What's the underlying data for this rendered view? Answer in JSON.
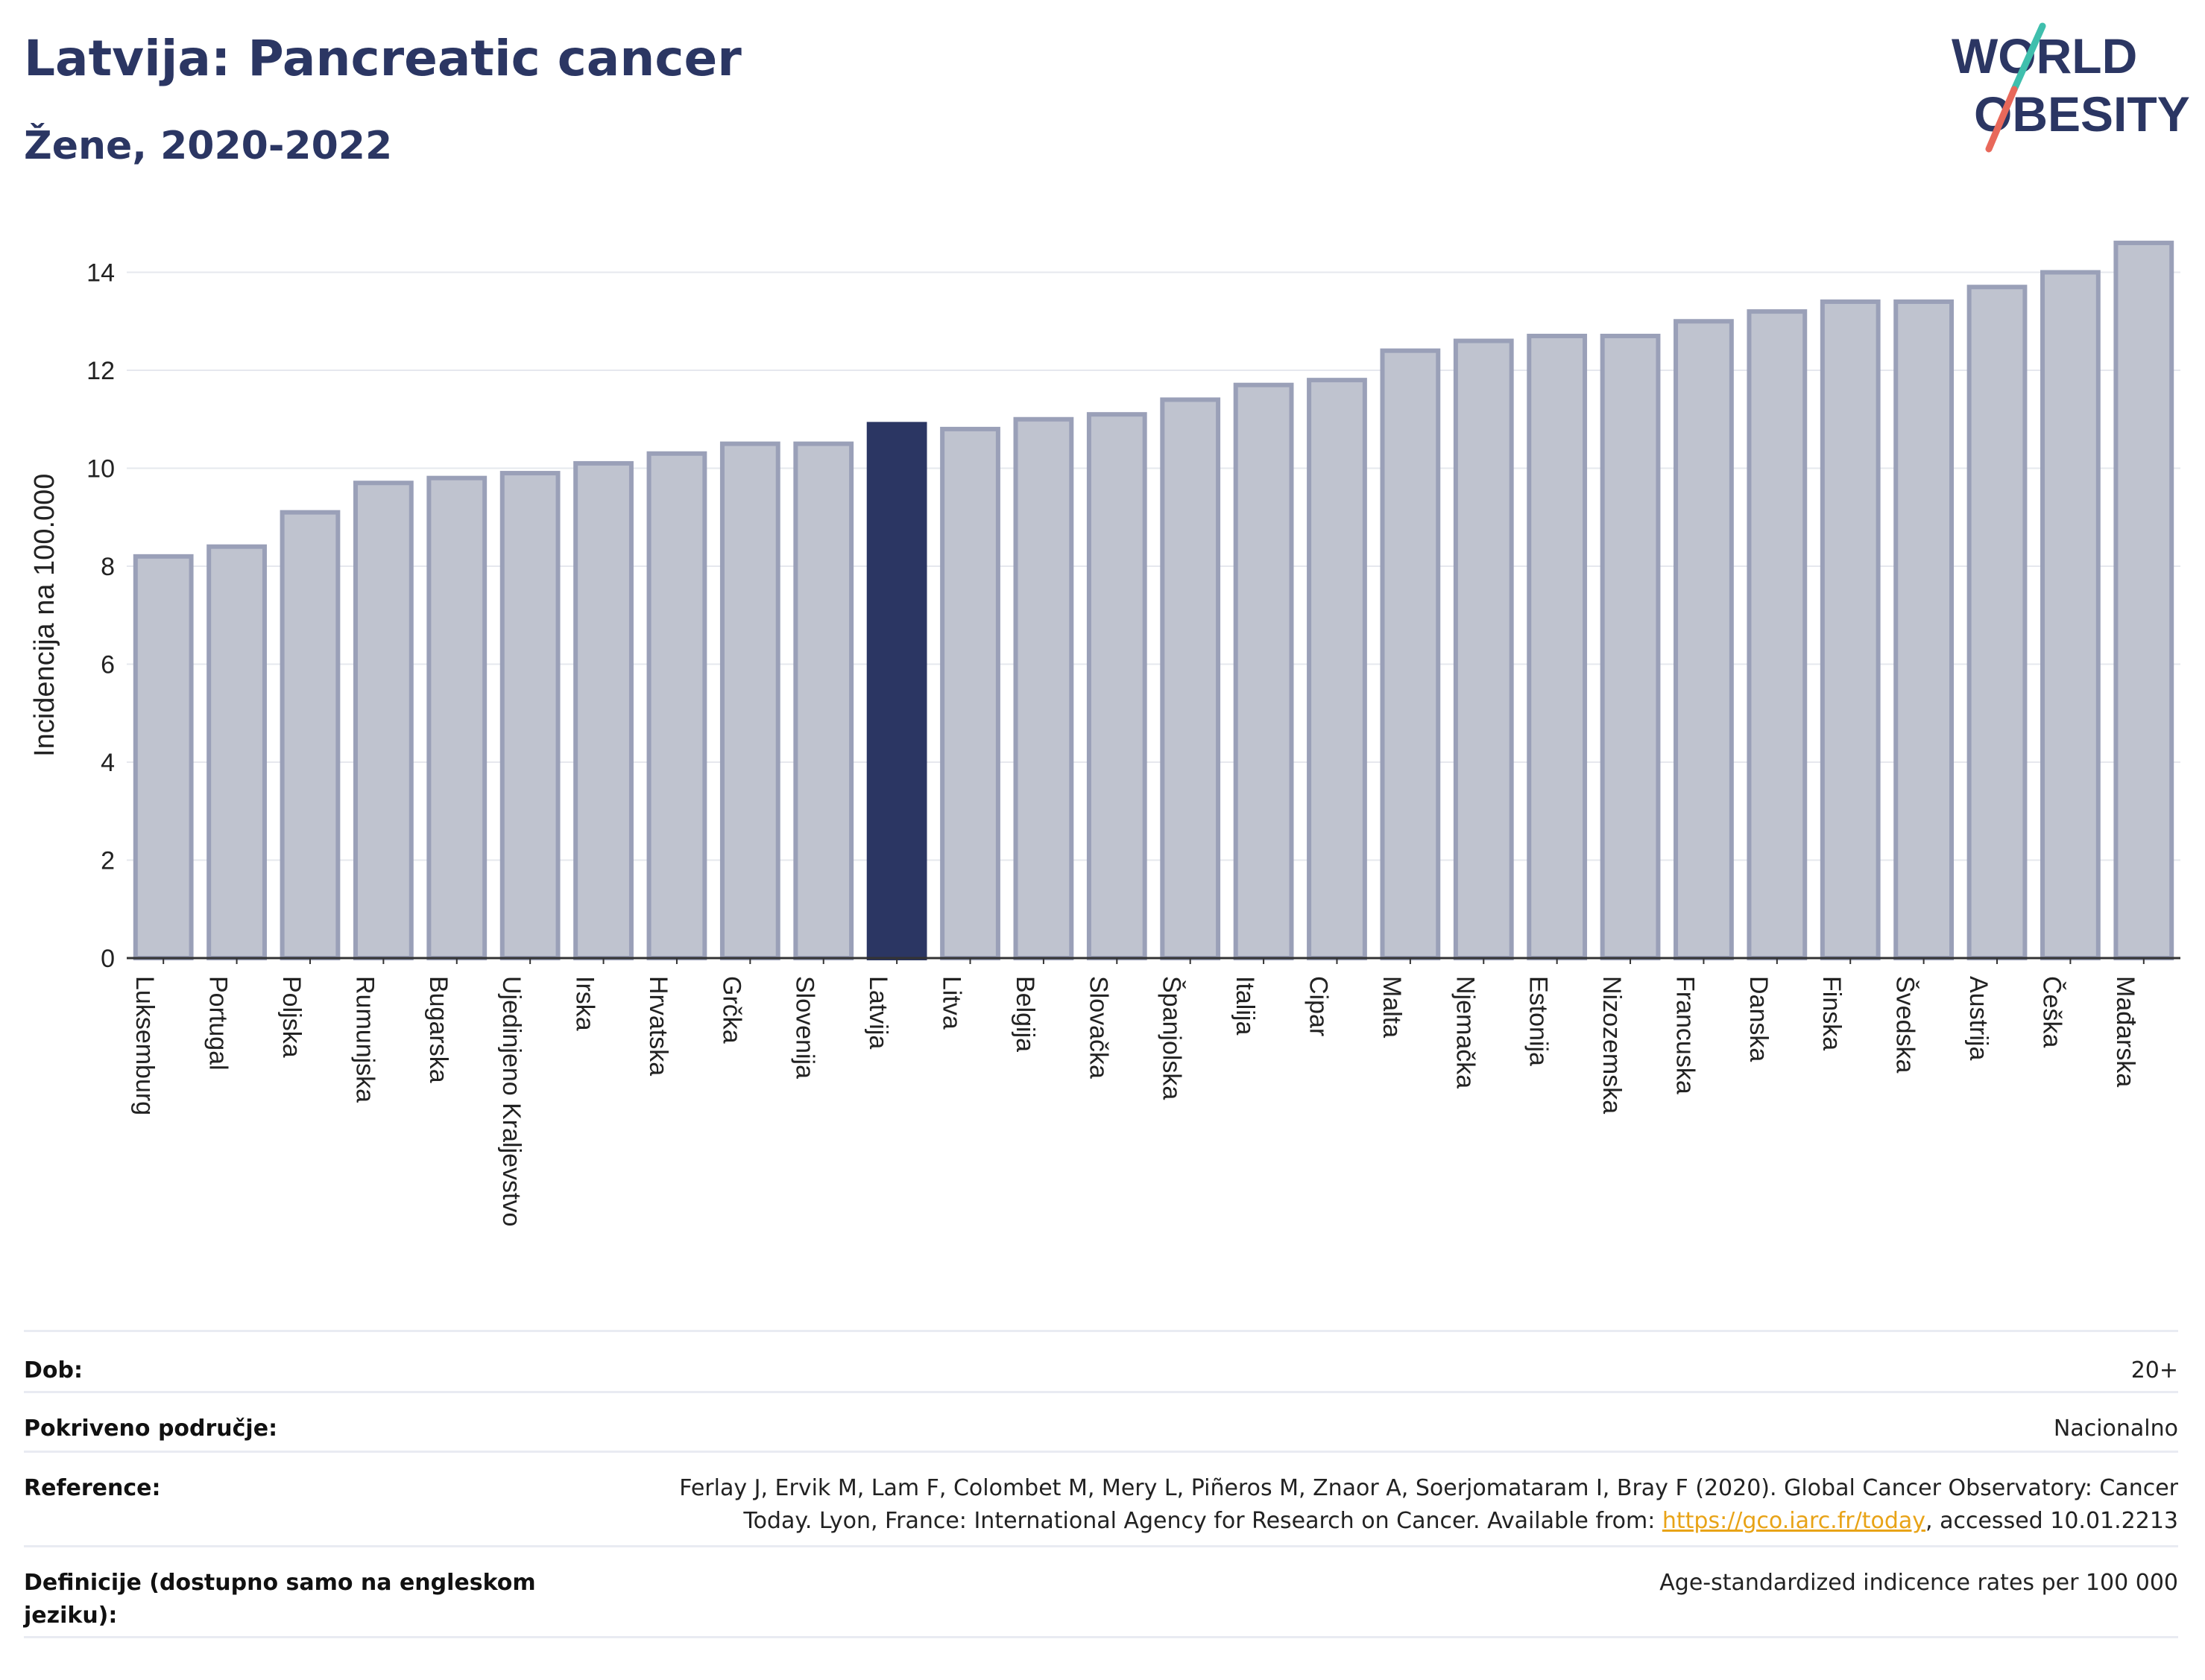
{
  "header": {
    "title": "Latvija: Pancreatic cancer",
    "subtitle": "Žene, 2020-2022"
  },
  "logo": {
    "line1": "WORLD",
    "line2": "OBESITY",
    "primary_color": "#2b3663",
    "accent_colors": [
      "#3fbfad",
      "#e8685a"
    ]
  },
  "chart_data": {
    "type": "bar",
    "title": "Latvija: Pancreatic cancer",
    "subtitle": "Žene, 2020-2022",
    "xlabel": "",
    "ylabel": "Incidencija na 100.000",
    "ylim": [
      0,
      15
    ],
    "yticks": [
      0,
      2,
      4,
      6,
      8,
      10,
      12,
      14
    ],
    "grid": true,
    "highlight": "Latvija",
    "colors": {
      "bar": "#bfc3cf",
      "bar_edge": "#9aa0b8",
      "highlight": "#2b3663"
    },
    "categories": [
      "Luksemburg",
      "Portugal",
      "Poljska",
      "Rumunjska",
      "Bugarska",
      "Ujedinjeno Kraljevstvo",
      "Irska",
      "Hrvatska",
      "Grčka",
      "Slovenija",
      "Latvija",
      "Litva",
      "Belgija",
      "Slovačka",
      "Španjolska",
      "Italija",
      "Cipar",
      "Malta",
      "Njemačka",
      "Estonija",
      "Nizozemska",
      "Francuska",
      "Danska",
      "Finska",
      "Švedska",
      "Austrija",
      "Češka",
      "Mađarska"
    ],
    "values": [
      8.2,
      8.4,
      9.1,
      9.7,
      9.8,
      9.9,
      10.1,
      10.3,
      10.5,
      10.5,
      10.9,
      10.8,
      11.0,
      11.1,
      11.4,
      11.7,
      11.8,
      12.4,
      12.6,
      12.7,
      12.7,
      13.0,
      13.2,
      13.4,
      13.4,
      13.7,
      14.0,
      14.6
    ]
  },
  "info": {
    "age_label": "Dob:",
    "age_value": "20+",
    "coverage_label": "Pokriveno područje:",
    "coverage_value": "Nacionalno",
    "reference_label": "Reference:",
    "reference_text": "Ferlay J, Ervik M, Lam F, Colombet M, Mery L, Piñeros M, Znaor A, Soerjomataram I, Bray F (2020). Global Cancer Observatory: Cancer Today. Lyon, France: International Agency for Research on Cancer. Available from:",
    "reference_link": "https://gco.iarc.fr/today",
    "reference_suffix": ", accessed 10.01.2213",
    "definitions_label": "Definicije (dostupno samo na engleskom jeziku):",
    "definitions_value": "Age-standardized indicence rates per 100 000"
  }
}
